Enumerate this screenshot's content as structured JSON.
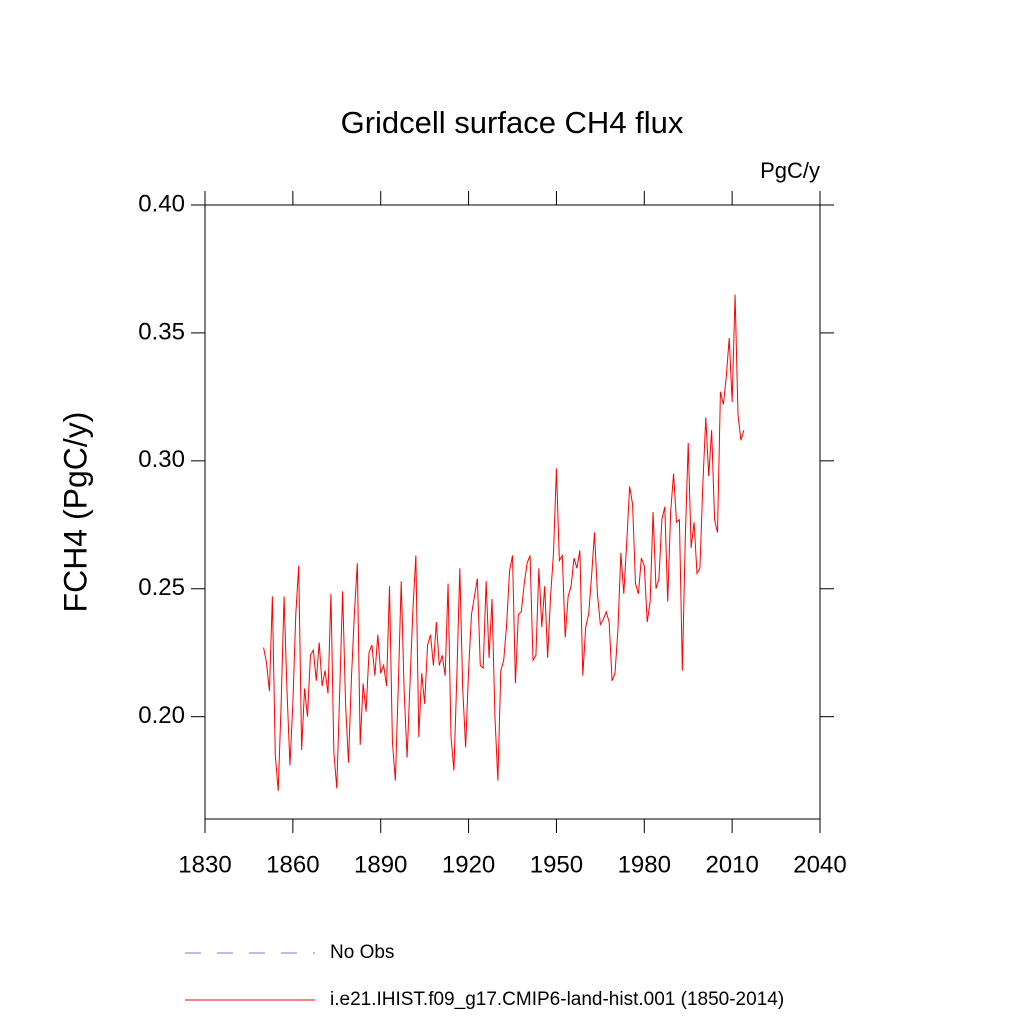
{
  "chart_data": {
    "type": "line",
    "title": "Gridcell surface CH4 flux",
    "units": "PgC/y",
    "y_label": "FCH4  (PgC/y)",
    "xlim": [
      1830,
      2040
    ],
    "xticks": [
      1830,
      1860,
      1890,
      1920,
      1950,
      1980,
      2010,
      2040
    ],
    "ylim": [
      0.16,
      0.4
    ],
    "yticks": [
      {
        "value": 0.2,
        "label": "0.20"
      },
      {
        "value": 0.25,
        "label": "0.25"
      },
      {
        "value": 0.3,
        "label": "0.30"
      },
      {
        "value": 0.35,
        "label": "0.35"
      },
      {
        "value": 0.4,
        "label": "0.40"
      }
    ],
    "legend": [
      {
        "label": "No Obs",
        "color": "#7b7bd0",
        "style": "dashed"
      }
    ],
    "x": [
      1850,
      1851,
      1852,
      1853,
      1854,
      1855,
      1856,
      1857,
      1858,
      1859,
      1860,
      1861,
      1862,
      1863,
      1864,
      1865,
      1866,
      1867,
      1868,
      1869,
      1870,
      1871,
      1872,
      1873,
      1874,
      1875,
      1876,
      1877,
      1878,
      1879,
      1880,
      1881,
      1882,
      1883,
      1884,
      1885,
      1886,
      1887,
      1888,
      1889,
      1890,
      1891,
      1892,
      1893,
      1894,
      1895,
      1896,
      1897,
      1898,
      1899,
      1900,
      1901,
      1902,
      1903,
      1904,
      1905,
      1906,
      1907,
      1908,
      1909,
      1910,
      1911,
      1912,
      1913,
      1914,
      1915,
      1916,
      1917,
      1918,
      1919,
      1920,
      1921,
      1922,
      1923,
      1924,
      1925,
      1926,
      1927,
      1928,
      1929,
      1930,
      1931,
      1932,
      1933,
      1934,
      1935,
      1936,
      1937,
      1938,
      1939,
      1940,
      1941,
      1942,
      1943,
      1944,
      1945,
      1946,
      1947,
      1948,
      1949,
      1950,
      1951,
      1952,
      1953,
      1954,
      1955,
      1956,
      1957,
      1958,
      1959,
      1960,
      1961,
      1962,
      1963,
      1964,
      1965,
      1966,
      1967,
      1968,
      1969,
      1970,
      1971,
      1972,
      1973,
      1974,
      1975,
      1976,
      1977,
      1978,
      1979,
      1980,
      1981,
      1982,
      1983,
      1984,
      1985,
      1986,
      1987,
      1988,
      1989,
      1990,
      1991,
      1992,
      1993,
      1994,
      1995,
      1996,
      1997,
      1998,
      1999,
      2000,
      2001,
      2002,
      2003,
      2004,
      2005,
      2006,
      2007,
      2008,
      2009,
      2010,
      2011,
      2012,
      2013,
      2014
    ],
    "series": [
      {
        "name": "i.e21.IHIST.f09_g17.CMIP6-land-hist.001 (1850-2014)",
        "color": "#ff0000",
        "values": [
          0.227,
          0.221,
          0.21,
          0.247,
          0.185,
          0.171,
          0.205,
          0.247,
          0.21,
          0.181,
          0.205,
          0.24,
          0.259,
          0.187,
          0.211,
          0.2,
          0.224,
          0.226,
          0.214,
          0.229,
          0.212,
          0.218,
          0.209,
          0.248,
          0.186,
          0.172,
          0.21,
          0.249,
          0.205,
          0.182,
          0.215,
          0.24,
          0.26,
          0.189,
          0.213,
          0.202,
          0.225,
          0.228,
          0.216,
          0.232,
          0.217,
          0.22,
          0.212,
          0.251,
          0.19,
          0.175,
          0.212,
          0.253,
          0.21,
          0.184,
          0.213,
          0.242,
          0.263,
          0.192,
          0.217,
          0.205,
          0.228,
          0.232,
          0.22,
          0.237,
          0.22,
          0.224,
          0.216,
          0.252,
          0.192,
          0.179,
          0.216,
          0.258,
          0.211,
          0.188,
          0.218,
          0.24,
          0.247,
          0.254,
          0.22,
          0.219,
          0.253,
          0.223,
          0.246,
          0.2,
          0.175,
          0.218,
          0.222,
          0.236,
          0.257,
          0.263,
          0.213,
          0.24,
          0.241,
          0.252,
          0.26,
          0.263,
          0.222,
          0.224,
          0.258,
          0.235,
          0.251,
          0.223,
          0.247,
          0.264,
          0.297,
          0.261,
          0.263,
          0.231,
          0.247,
          0.251,
          0.262,
          0.258,
          0.265,
          0.216,
          0.235,
          0.24,
          0.255,
          0.272,
          0.248,
          0.236,
          0.238,
          0.241,
          0.237,
          0.214,
          0.217,
          0.234,
          0.264,
          0.248,
          0.268,
          0.29,
          0.283,
          0.252,
          0.248,
          0.262,
          0.259,
          0.237,
          0.245,
          0.28,
          0.25,
          0.254,
          0.277,
          0.282,
          0.245,
          0.28,
          0.295,
          0.276,
          0.277,
          0.218,
          0.27,
          0.307,
          0.266,
          0.276,
          0.256,
          0.258,
          0.291,
          0.317,
          0.294,
          0.312,
          0.277,
          0.272,
          0.327,
          0.322,
          0.333,
          0.348,
          0.323,
          0.365,
          0.318,
          0.308,
          0.312
        ]
      }
    ]
  }
}
